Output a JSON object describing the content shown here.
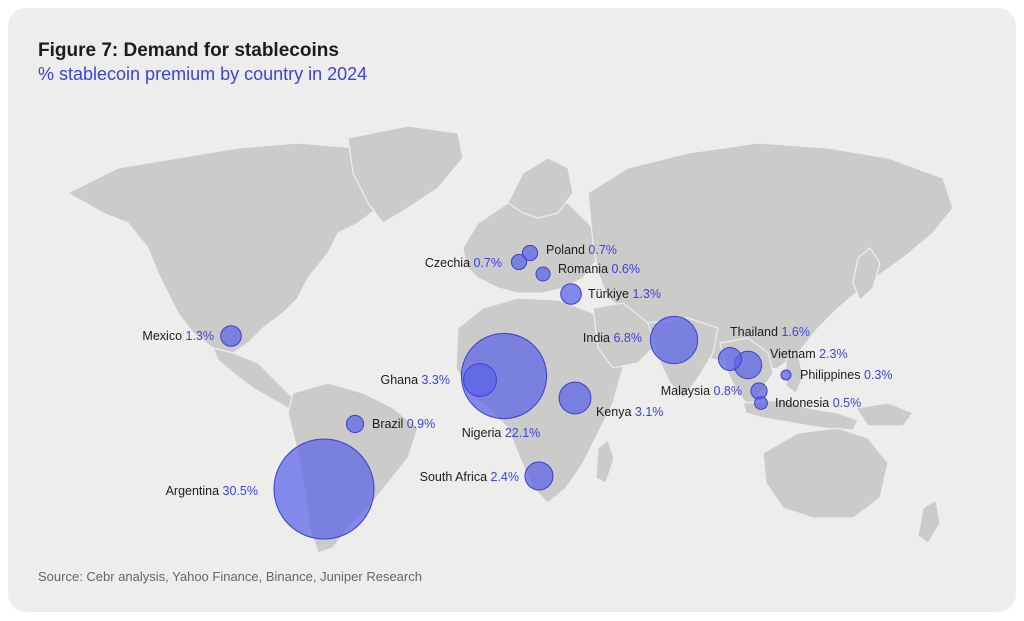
{
  "header": {
    "title": "Figure 7: Demand for stablecoins",
    "subtitle": "% stablecoin premium by country in 2024"
  },
  "footer": {
    "source": "Source: Cebr analysis, Yahoo Finance, Binance, Juniper Research"
  },
  "colors": {
    "bubble": "#5a62e6",
    "accent_text": "#3b43e0",
    "land": "#cbcbc9",
    "background": "#ededeb"
  },
  "chart_data": {
    "type": "bubble-map",
    "unit": "%",
    "title": "Figure 7: Demand for stablecoins",
    "subtitle": "% stablecoin premium by country in 2024",
    "points": [
      {
        "country": "Argentina",
        "value": 30.5,
        "value_label": "30.5%"
      },
      {
        "country": "Nigeria",
        "value": 22.1,
        "value_label": "22.1%"
      },
      {
        "country": "India",
        "value": 6.8,
        "value_label": "6.8%"
      },
      {
        "country": "Ghana",
        "value": 3.3,
        "value_label": "3.3%"
      },
      {
        "country": "Kenya",
        "value": 3.1,
        "value_label": "3.1%"
      },
      {
        "country": "South Africa",
        "value": 2.4,
        "value_label": "2.4%"
      },
      {
        "country": "Vietnam",
        "value": 2.3,
        "value_label": "2.3%"
      },
      {
        "country": "Thailand",
        "value": 1.6,
        "value_label": "1.6%"
      },
      {
        "country": "Mexico",
        "value": 1.3,
        "value_label": "1.3%"
      },
      {
        "country": "Türkiye",
        "value": 1.3,
        "value_label": "1.3%"
      },
      {
        "country": "Brazil",
        "value": 0.9,
        "value_label": "0.9%"
      },
      {
        "country": "Malaysia",
        "value": 0.8,
        "value_label": "0.8%"
      },
      {
        "country": "Poland",
        "value": 0.7,
        "value_label": "0.7%"
      },
      {
        "country": "Czechia",
        "value": 0.7,
        "value_label": "0.7%"
      },
      {
        "country": "Romania",
        "value": 0.6,
        "value_label": "0.6%"
      },
      {
        "country": "Indonesia",
        "value": 0.5,
        "value_label": "0.5%"
      },
      {
        "country": "Philippines",
        "value": 0.3,
        "value_label": "0.3%"
      }
    ]
  }
}
